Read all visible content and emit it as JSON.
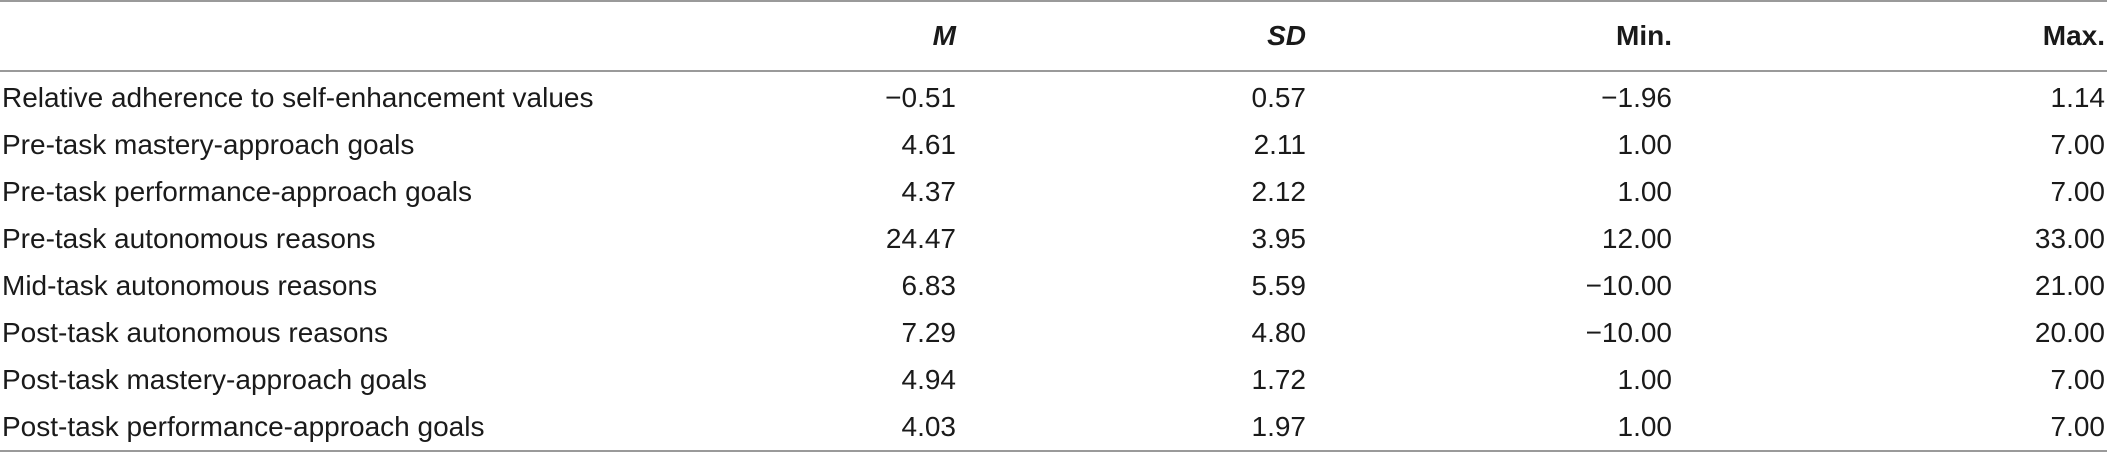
{
  "table": {
    "headers": {
      "label": "",
      "m": "M",
      "sd": "SD",
      "min": "Min.",
      "max": "Max."
    },
    "rows": [
      {
        "label": "Relative adherence to self-enhancement values",
        "m": "−0.51",
        "sd": "0.57",
        "min": "−1.96",
        "max": "1.14"
      },
      {
        "label": "Pre-task mastery-approach goals",
        "m": "4.61",
        "sd": "2.11",
        "min": "1.00",
        "max": "7.00"
      },
      {
        "label": "Pre-task performance-approach goals",
        "m": "4.37",
        "sd": "2.12",
        "min": "1.00",
        "max": "7.00"
      },
      {
        "label": "Pre-task autonomous reasons",
        "m": "24.47",
        "sd": "3.95",
        "min": "12.00",
        "max": "33.00"
      },
      {
        "label": "Mid-task autonomous reasons",
        "m": "6.83",
        "sd": "5.59",
        "min": "−10.00",
        "max": "21.00"
      },
      {
        "label": "Post-task autonomous reasons",
        "m": "7.29",
        "sd": "4.80",
        "min": "−10.00",
        "max": "20.00"
      },
      {
        "label": "Post-task mastery-approach goals",
        "m": "4.94",
        "sd": "1.72",
        "min": "1.00",
        "max": "7.00"
      },
      {
        "label": "Post-task performance-approach goals",
        "m": "4.03",
        "sd": "1.97",
        "min": "1.00",
        "max": "7.00"
      }
    ]
  }
}
